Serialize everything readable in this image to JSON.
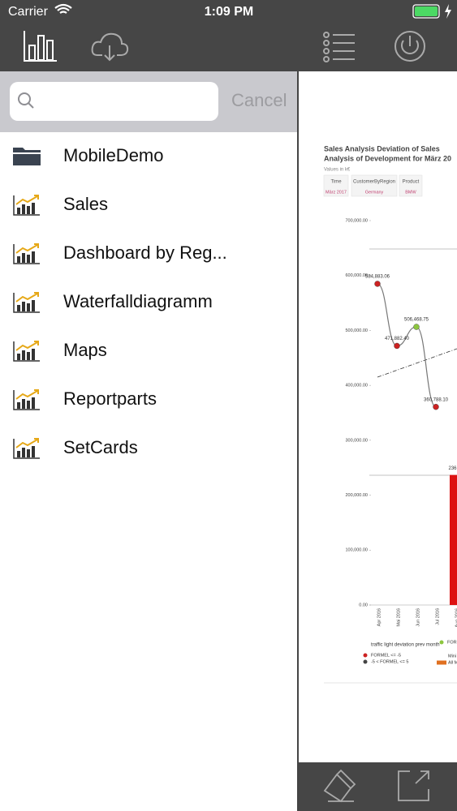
{
  "status_bar": {
    "carrier": "Carrier",
    "time": "1:09 PM"
  },
  "search": {
    "cancel": "Cancel"
  },
  "menu": {
    "items": [
      "MobileDemo",
      "Sales",
      "Dashboard by Reg...",
      "Waterfalldiagramm",
      "Maps",
      "Reportparts",
      "SetCards"
    ]
  },
  "report": {
    "title_lines": [
      "Sales Analysis Deviation of Sales",
      "Analysis of Development for März 20"
    ],
    "subtitle": "Values in k€",
    "filters": [
      {
        "label": "Time",
        "value": "März 2017"
      },
      {
        "label": "CustomerByRegion",
        "value": "Germany"
      },
      {
        "label": "Product",
        "value": "BMW"
      }
    ]
  },
  "chart_data": {
    "type": "line",
    "categories": [
      "Apr 2016",
      "Mai 2016",
      "Jun 2016",
      "Jul 2016",
      "Aug 2016"
    ],
    "series": [
      {
        "color": "#777777",
        "values": [
          584883.06,
          471882.4,
          506468.75,
          360788.1,
          null
        ],
        "value_labels": [
          "584,883.06",
          "471,882.40",
          "506,468.75",
          "360,788.10",
          null
        ],
        "point_colors": [
          "#cc2222",
          "#cc2222",
          "#8dc63f",
          "#cc2222",
          null
        ]
      },
      {
        "color": "#dd1111",
        "type": "bar",
        "values": [
          null,
          null,
          null,
          null,
          236800
        ],
        "value_labels": [
          null,
          null,
          null,
          null,
          "236,8"
        ]
      }
    ],
    "ylim": [
      0,
      700000
    ],
    "yticks": [
      {
        "value": 0,
        "label": "0.00"
      },
      {
        "value": 100000,
        "label": "100,000.00"
      },
      {
        "value": 200000,
        "label": "200,000.00"
      },
      {
        "value": 300000,
        "label": "300,000.00"
      },
      {
        "value": 400000,
        "label": "400,000.00"
      },
      {
        "value": 500000,
        "label": "500,000.00"
      },
      {
        "value": 600000,
        "label": "600,000.00"
      },
      {
        "value": 700000,
        "label": "700,000.00"
      }
    ],
    "legend_title": "traffic light deviation prev month",
    "legend": [
      {
        "label": "FORMEL <= -5",
        "color": "#cc2222"
      },
      {
        "label": "-5 < FORMEL <= 5",
        "color": "#444444"
      },
      {
        "label": "FOR",
        "color": "#8dc63f"
      },
      {
        "label": "Mini",
        "color": null
      },
      {
        "label": "All M",
        "color": "#e07020"
      }
    ]
  }
}
